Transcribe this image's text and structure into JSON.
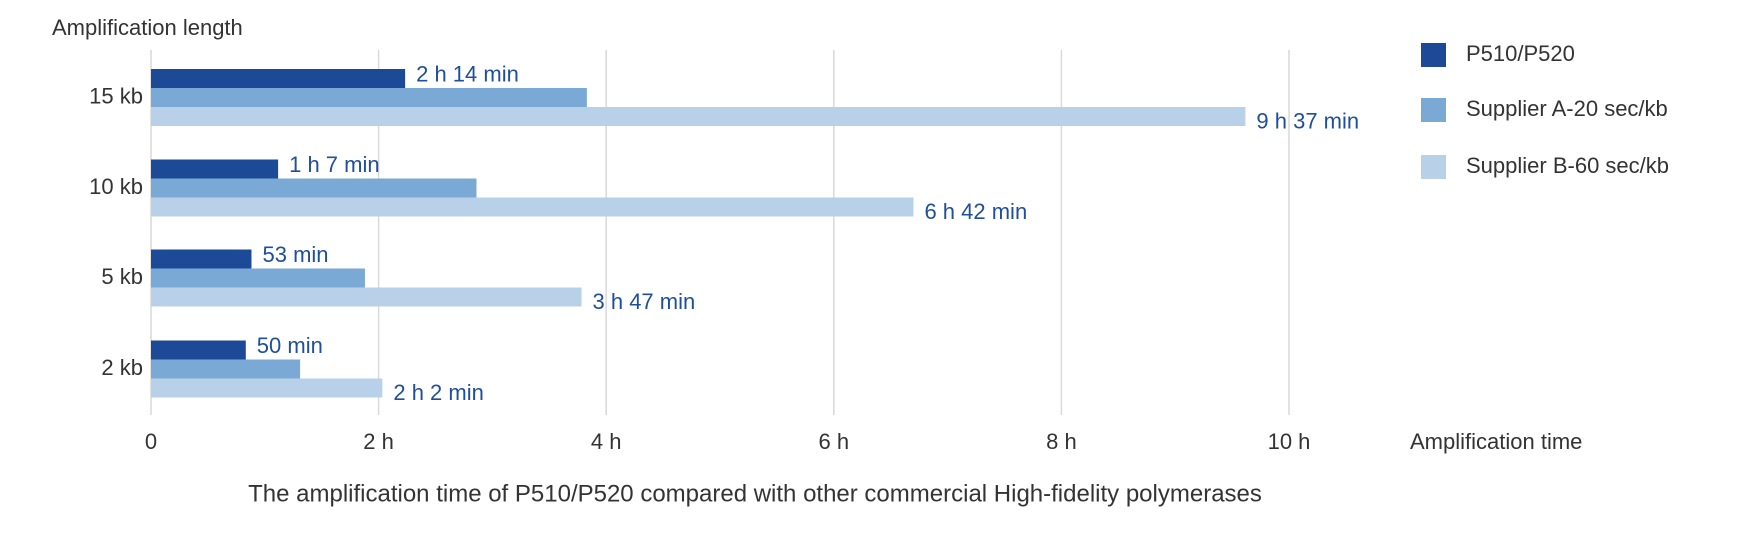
{
  "chart_data": {
    "type": "barh",
    "title": "The amplification time of P510/P520 compared with other commercial High-fidelity polymerases",
    "y_label": "Amplification length",
    "x_label": "Amplification time",
    "categories": [
      "15 kb",
      "10 kb",
      "5 kb",
      "2 kb"
    ],
    "series": [
      {
        "name": "P510/P520",
        "color": "#1c4a97",
        "values": [
          2.233,
          1.117,
          0.883,
          0.833
        ],
        "value_labels": [
          "2 h 14 min",
          "1 h 7 min",
          "53 min",
          "50 min"
        ]
      },
      {
        "name": "Supplier A-20 sec/kb",
        "color": "#7ba9d6",
        "values": [
          3.83,
          2.86,
          1.88,
          1.31
        ]
      },
      {
        "name": "Supplier B-60 sec/kb",
        "color": "#b8d1e9",
        "values": [
          9.617,
          6.7,
          3.783,
          2.033
        ],
        "value_labels": [
          "9 h 37 min",
          "6 h 42 min",
          "3 h 47 min",
          "2 h 2 min"
        ]
      }
    ],
    "xlim": [
      0,
      10
    ],
    "xticks": [
      0,
      {
        "value": 2,
        "label": "2 h"
      },
      {
        "value": 4,
        "label": "4 h"
      },
      {
        "value": 6,
        "label": "6 h"
      },
      {
        "value": 8,
        "label": "8 h"
      },
      {
        "value": 10,
        "label": "10 h"
      }
    ],
    "grid": true,
    "legend": "right"
  }
}
